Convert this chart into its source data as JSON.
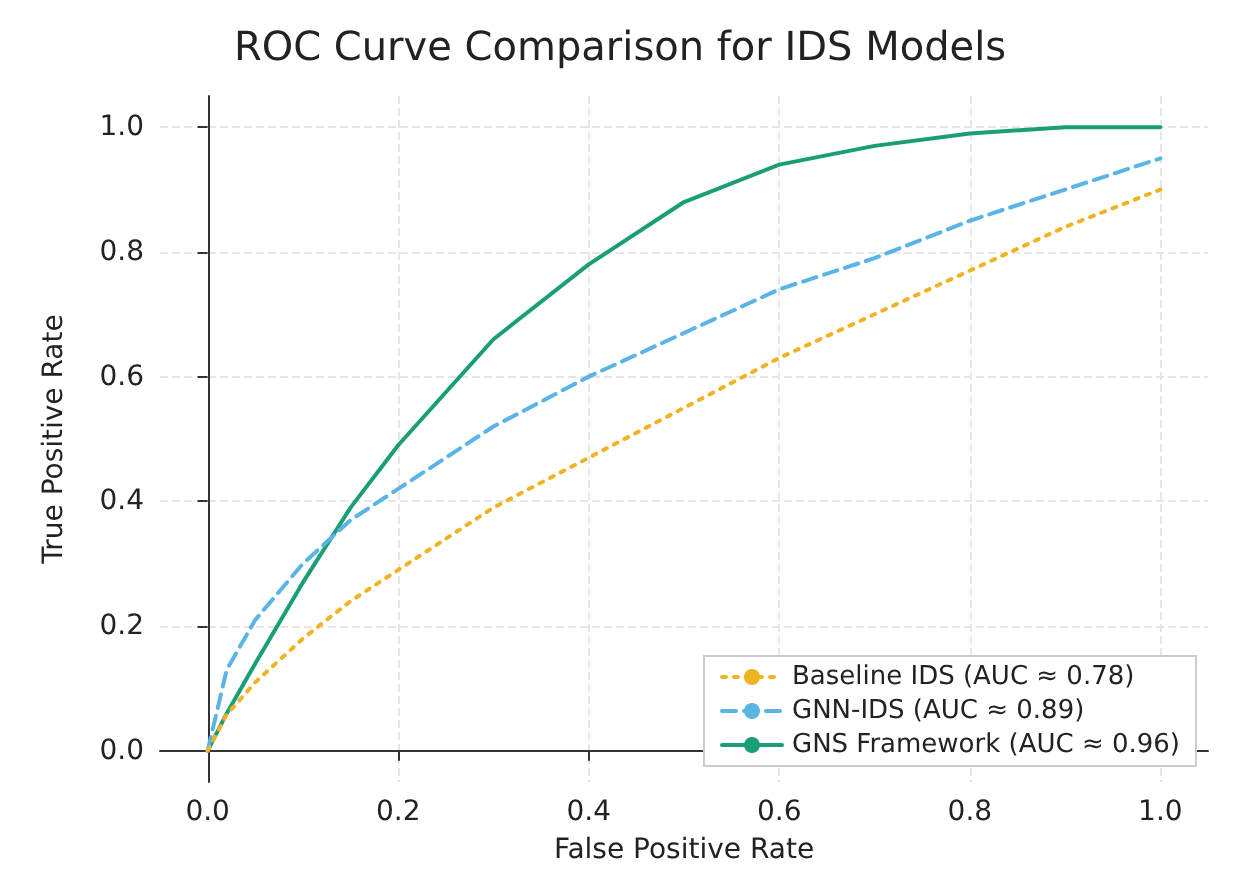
{
  "chart_data": {
    "type": "line",
    "title": "ROC Curve Comparison for IDS Models",
    "xlabel": "False Positive Rate",
    "ylabel": "True Positive Rate",
    "x": [
      0,
      0.02,
      0.05,
      0.1,
      0.15,
      0.2,
      0.3,
      0.4,
      0.5,
      0.6,
      0.7,
      0.8,
      0.9,
      1.0
    ],
    "series": [
      {
        "name": "Baseline IDS (AUC ≈ 0.78)",
        "color": "#f0b323",
        "line_style": "dotted",
        "values": [
          0,
          0.058,
          0.11,
          0.18,
          0.24,
          0.29,
          0.39,
          0.47,
          0.55,
          0.63,
          0.7,
          0.77,
          0.84,
          0.9
        ]
      },
      {
        "name": "GNN-IDS (AUC ≈ 0.89)",
        "color": "#5ab4e5",
        "line_style": "dashed",
        "values": [
          0,
          0.13,
          0.21,
          0.3,
          0.37,
          0.42,
          0.52,
          0.6,
          0.67,
          0.74,
          0.79,
          0.85,
          0.9,
          0.95
        ]
      },
      {
        "name": "GNS Framework (AUC ≈ 0.96)",
        "color": "#1a9e77",
        "line_style": "solid",
        "values": [
          0,
          0.06,
          0.14,
          0.27,
          0.39,
          0.49,
          0.66,
          0.78,
          0.88,
          0.94,
          0.97,
          0.99,
          1.0,
          1.0
        ]
      }
    ],
    "xlim": [
      -0.05,
      1.05
    ],
    "ylim": [
      -0.05,
      1.05
    ],
    "xticks": [
      {
        "value": 0,
        "label": "0.0"
      },
      {
        "value": 0.2,
        "label": "0.2"
      },
      {
        "value": 0.4,
        "label": "0.4"
      },
      {
        "value": 0.6,
        "label": "0.6"
      },
      {
        "value": 0.8,
        "label": "0.8"
      },
      {
        "value": 1,
        "label": "1.0"
      }
    ],
    "yticks": [
      {
        "value": 0,
        "label": "0.0"
      },
      {
        "value": 0.2,
        "label": "0.2"
      },
      {
        "value": 0.4,
        "label": "0.4"
      },
      {
        "value": 0.6,
        "label": "0.6"
      },
      {
        "value": 0.8,
        "label": "0.8"
      },
      {
        "value": 1,
        "label": "1.0"
      }
    ],
    "grid": true,
    "legend": "bottom right",
    "marker": "none"
  }
}
